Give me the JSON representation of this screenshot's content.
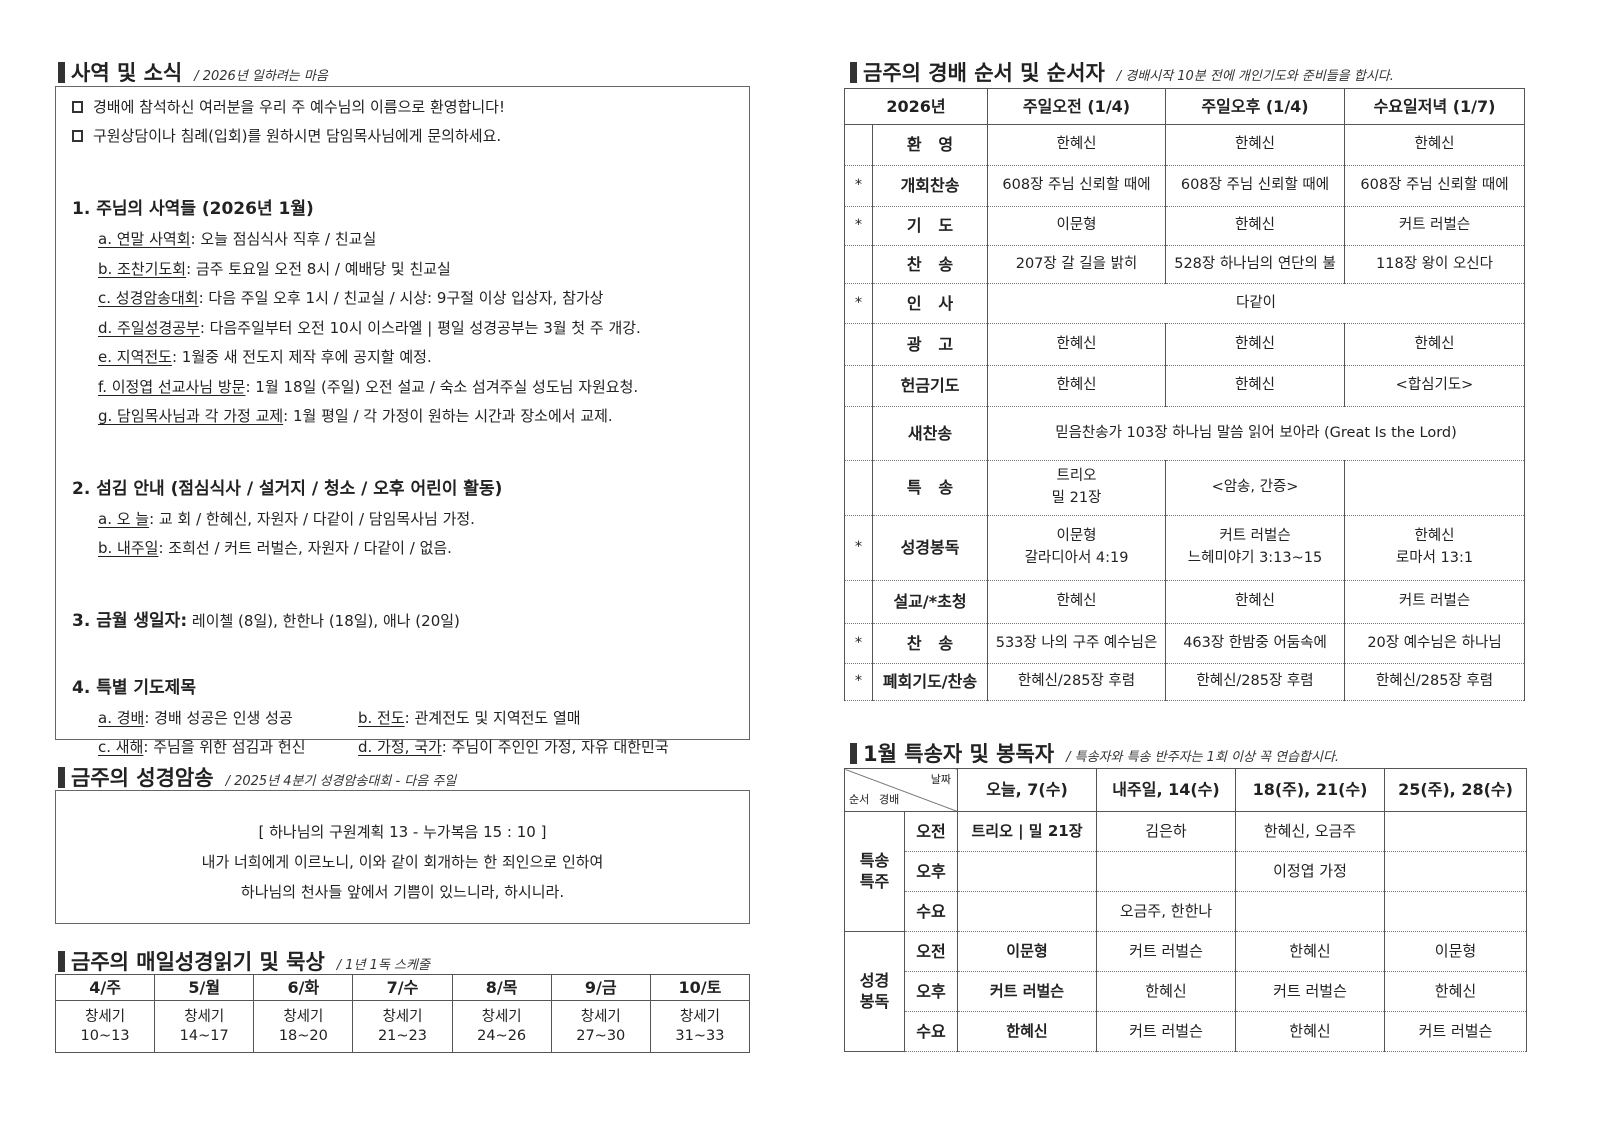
{
  "news": {
    "title": "사역 및 소식",
    "subtitle": "/ 2026년 일하려는 마음",
    "welcome": [
      "경배에 참석하신 여러분을 우리 주 예수님의 이름으로 환영합니다!",
      "구원상담이나 침례(입회)를 원하시면 담임목사님에게 문의하세요."
    ],
    "sections": [
      {
        "heading": "1. 주님의 사역들 (2026년 1월)",
        "items": [
          {
            "label": "a. 연말 사역회",
            "text": ": 오늘 점심식사 직후 / 친교실"
          },
          {
            "label": "b. 조찬기도회",
            "text": ": 금주 토요일 오전 8시 / 예배당 및 친교실"
          },
          {
            "label": "c. 성경암송대회",
            "text": ": 다음 주일 오후 1시 / 친교실 / 시상: 9구절 이상 입상자, 참가상"
          },
          {
            "label": "d. 주일성경공부",
            "text": ": 다음주일부터 오전 10시 이스라엘 | 평일 성경공부는 3월 첫 주 개강."
          },
          {
            "label": "e. 지역전도",
            "text": ": 1월중 새 전도지 제작 후에 공지할 예정."
          },
          {
            "label": "f. 이정엽 선교사님 방문",
            "text": ": 1월 18일 (주일) 오전 설교 / 숙소 섬겨주실 성도님 자원요청."
          },
          {
            "label": "g. 담임목사님과 각 가정 교제",
            "text": ": 1월 평일 / 각 가정이 원하는 시간과 장소에서 교제."
          }
        ]
      },
      {
        "heading": "2. 섬김 안내 (점심식사 / 설거지 / 청소 / 오후 어린이 활동)",
        "items": [
          {
            "label": "a. 오  늘",
            "text": ": 교  회 / 한혜신, 자원자 / 다같이 / 담임목사님 가정."
          },
          {
            "label": "b. 내주일",
            "text": ": 조희선 / 커트 러벌슨, 자원자 / 다같이 / 없음."
          }
        ]
      },
      {
        "heading": "3. 금월 생일자:",
        "rest": " 레이첼 (8일), 한한나 (18일), 애나 (20일)"
      },
      {
        "heading": "4. 특별 기도제목",
        "pairs": [
          [
            {
              "label": "a. 경배",
              "text": ": 경배 성공은 인생 성공"
            },
            {
              "label": "b. 전도",
              "text": ": 관계전도 및 지역전도 열매"
            }
          ],
          [
            {
              "label": "c. 새해",
              "text": ": 주님을 위한 섬김과 헌신"
            },
            {
              "label": "d. 가정, 국가",
              "text": ": 주님이 주인인 가정, 자유 대한민국"
            }
          ]
        ]
      }
    ]
  },
  "memory": {
    "title": "금주의 성경암송",
    "subtitle": "/ 2025년 4분기 성경암송대회 - 다음 주일",
    "ref": "[ 하나님의 구원계획 13 - 누가복음 15 : 10 ]",
    "lines": [
      "내가 너희에게 이르노니, 이와 같이 회개하는 한 죄인으로 인하여",
      "하나님의 천사들 앞에서 기쁨이 있느니라, 하시니라."
    ]
  },
  "reading": {
    "title": "금주의 매일성경읽기 및 묵상",
    "subtitle": "/ 1년 1독 스케줄",
    "days": [
      {
        "day": "4/주",
        "text": "창세기\n10~13"
      },
      {
        "day": "5/월",
        "text": "창세기\n14~17"
      },
      {
        "day": "6/화",
        "text": "창세기\n18~20"
      },
      {
        "day": "7/수",
        "text": "창세기\n21~23"
      },
      {
        "day": "8/목",
        "text": "창세기\n24~26"
      },
      {
        "day": "9/금",
        "text": "창세기\n27~30"
      },
      {
        "day": "10/토",
        "text": "창세기\n31~33"
      }
    ]
  },
  "worship": {
    "title": "금주의 경배 순서 및 순서자",
    "subtitle": "/ 경배시작 10분 전에 개인기도와 준비들을 합시다.",
    "headers": [
      "2026년",
      "주일오전 (1/4)",
      "주일오후 (1/4)",
      "수요일저녁 (1/7)"
    ],
    "rows": [
      {
        "star": "",
        "label": "환   영",
        "cells": [
          "한혜신",
          "한혜신",
          "한혜신"
        ]
      },
      {
        "star": "*",
        "label": "개회찬송",
        "cells": [
          "608장 주님 신뢰할 때에",
          "608장 주님 신뢰할 때에",
          "608장 주님 신뢰할 때에"
        ]
      },
      {
        "star": "*",
        "label": "기   도",
        "cells": [
          "이문형",
          "한혜신",
          "커트 러벌슨"
        ]
      },
      {
        "star": "",
        "label": "찬   송",
        "cells": [
          "207장 갈 길을 밝히",
          "528장 하나님의 연단의 불",
          "118장 왕이 오신다"
        ]
      },
      {
        "star": "*",
        "label": "인   사",
        "cells": [
          "다같이"
        ]
      },
      {
        "star": "",
        "label": "광   고",
        "cells": [
          "한혜신",
          "한혜신",
          "한혜신"
        ]
      },
      {
        "star": "",
        "label": "헌금기도",
        "cells": [
          "한혜신",
          "한혜신",
          "<합심기도>"
        ]
      },
      {
        "star": "",
        "label": "새찬송",
        "cells": [
          "믿음찬송가 103장 하나님 말씀 읽어 보아라 (Great Is the Lord)"
        ]
      },
      {
        "star": "",
        "label": "특   송",
        "cells": [
          "트리오\n밀 21장",
          "<암송, 간증>",
          ""
        ]
      },
      {
        "star": "*",
        "label": "성경봉독",
        "cells": [
          "이문형\n갈라디아서 4:19",
          "커트 러벌슨\n느헤미야기 3:13~15",
          "한혜신\n로마서 13:1"
        ]
      },
      {
        "star": "",
        "label": "설교/*초청",
        "cells": [
          "한혜신",
          "한혜신",
          "커트 러벌슨"
        ]
      },
      {
        "star": "*",
        "label": "찬   송",
        "cells": [
          "533장 나의 구주 예수님은",
          "463장 한밤중 어둠속에",
          "20장 예수님은 하나님"
        ]
      },
      {
        "star": "*",
        "label": "폐회기도/찬송",
        "cells": [
          "한혜신/285장 후렴",
          "한혜신/285장 후렴",
          "한혜신/285장 후렴"
        ]
      }
    ]
  },
  "special": {
    "title": "1월 특송자 및 봉독자",
    "subtitle": "/ 특송자와 특송 반주자는 1회 이상 꼭 연습합시다.",
    "corner": {
      "date": "날짜",
      "order": "순서",
      "service": "경배"
    },
    "headers": [
      "오늘, 7(수)",
      "내주일, 14(수)",
      "18(주), 21(수)",
      "25(주), 28(수)"
    ],
    "groups": [
      {
        "name": "특송\n특주",
        "rows": [
          {
            "service": "오전",
            "cells": [
              "트리오 | 밀 21장",
              "김은하",
              "한혜신, 오금주",
              ""
            ]
          },
          {
            "service": "오후",
            "cells": [
              "",
              "",
              "이정엽 가정",
              ""
            ]
          },
          {
            "service": "수요",
            "cells": [
              "",
              "오금주, 한한나",
              "",
              ""
            ]
          }
        ]
      },
      {
        "name": "성경\n봉독",
        "rows": [
          {
            "service": "오전",
            "cells": [
              "이문형",
              "커트 러벌슨",
              "한혜신",
              "이문형"
            ]
          },
          {
            "service": "오후",
            "cells": [
              "커트 러벌슨",
              "한혜신",
              "커트 러벌슨",
              "한혜신"
            ]
          },
          {
            "service": "수요",
            "cells": [
              "한혜신",
              "커트 러벌슨",
              "한혜신",
              "커트 러벌슨"
            ]
          }
        ]
      }
    ]
  }
}
